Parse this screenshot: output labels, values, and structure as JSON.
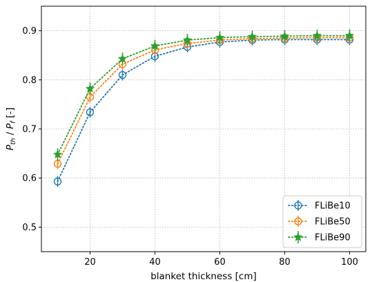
{
  "chart_data": {
    "type": "line",
    "xlabel": "blanket thickness [cm]",
    "ylabel": {
      "main": "P",
      "sub1": "th",
      "mid": " / ",
      "main2": "P",
      "sub2": "f",
      "tail": " [-]"
    },
    "xlim": [
      5,
      105
    ],
    "ylim": [
      0.45,
      0.95
    ],
    "xticks": [
      20,
      40,
      60,
      80,
      100
    ],
    "yticks": [
      0.5,
      0.6,
      0.7,
      0.8,
      0.9
    ],
    "grid": true,
    "legend_position": "bottom-right",
    "x": [
      10,
      20,
      30,
      40,
      50,
      60,
      70,
      80,
      90,
      100
    ],
    "series": [
      {
        "name": "FLiBe10",
        "color": "#1f77b4",
        "marker": "circle",
        "values": [
          0.593,
          0.734,
          0.81,
          0.848,
          0.867,
          0.877,
          0.881,
          0.882,
          0.882,
          0.882
        ]
      },
      {
        "name": "FLiBe50",
        "color": "#ff7f0e",
        "marker": "circle",
        "values": [
          0.629,
          0.765,
          0.832,
          0.861,
          0.874,
          0.881,
          0.884,
          0.885,
          0.886,
          0.886
        ]
      },
      {
        "name": "FLiBe90",
        "color": "#2ca02c",
        "marker": "star",
        "values": [
          0.648,
          0.782,
          0.843,
          0.869,
          0.881,
          0.886,
          0.888,
          0.889,
          0.89,
          0.89
        ]
      }
    ]
  }
}
